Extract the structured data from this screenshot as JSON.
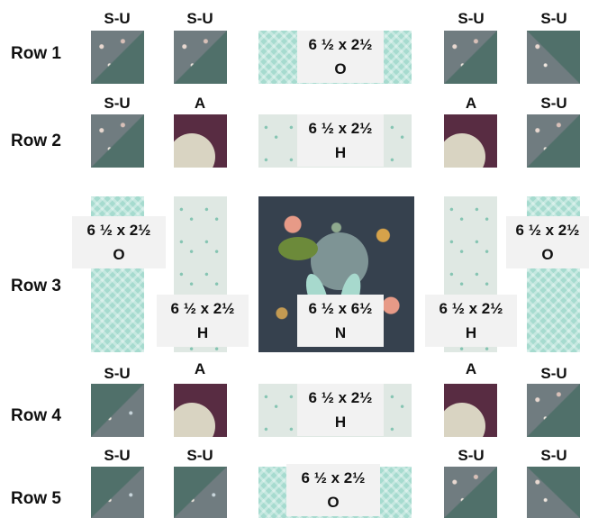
{
  "rows": [
    {
      "label": "Row 1",
      "block_labels": [
        "S-U",
        "S-U",
        "S-U",
        "S-U"
      ],
      "center": {
        "size": "6 ½ x 2½",
        "letter": "O"
      }
    },
    {
      "label": "Row 2",
      "block_labels": [
        "S-U",
        "A",
        "A",
        "S-U"
      ],
      "center": {
        "size": "6 ½ x 2½",
        "letter": "H"
      }
    },
    {
      "label": "Row 3",
      "side_outer": {
        "size": "6 ½ x 2½",
        "letter": "O"
      },
      "side_inner": {
        "size": "6 ½ x 2½",
        "letter": "H"
      },
      "center": {
        "size": "6 ½ x 6½",
        "letter": "N"
      }
    },
    {
      "label": "Row 4",
      "block_labels": [
        "S-U",
        "A",
        "A",
        "S-U"
      ],
      "center": {
        "size": "6 ½ x 2½",
        "letter": "H"
      }
    },
    {
      "label": "Row 5",
      "block_labels": [
        "S-U",
        "S-U",
        "S-U",
        "S-U"
      ],
      "center": {
        "size": "6 ½ x 2½",
        "letter": "O"
      }
    }
  ],
  "colors": {
    "gray_print": "#707c80",
    "sage_green": "#50706a",
    "mint_print": "#a6dbcf",
    "pale_print": "#dfe8e3",
    "plum": "#582c42",
    "navy_floral": "#36414e",
    "label_box": "#f2f2f2"
  }
}
